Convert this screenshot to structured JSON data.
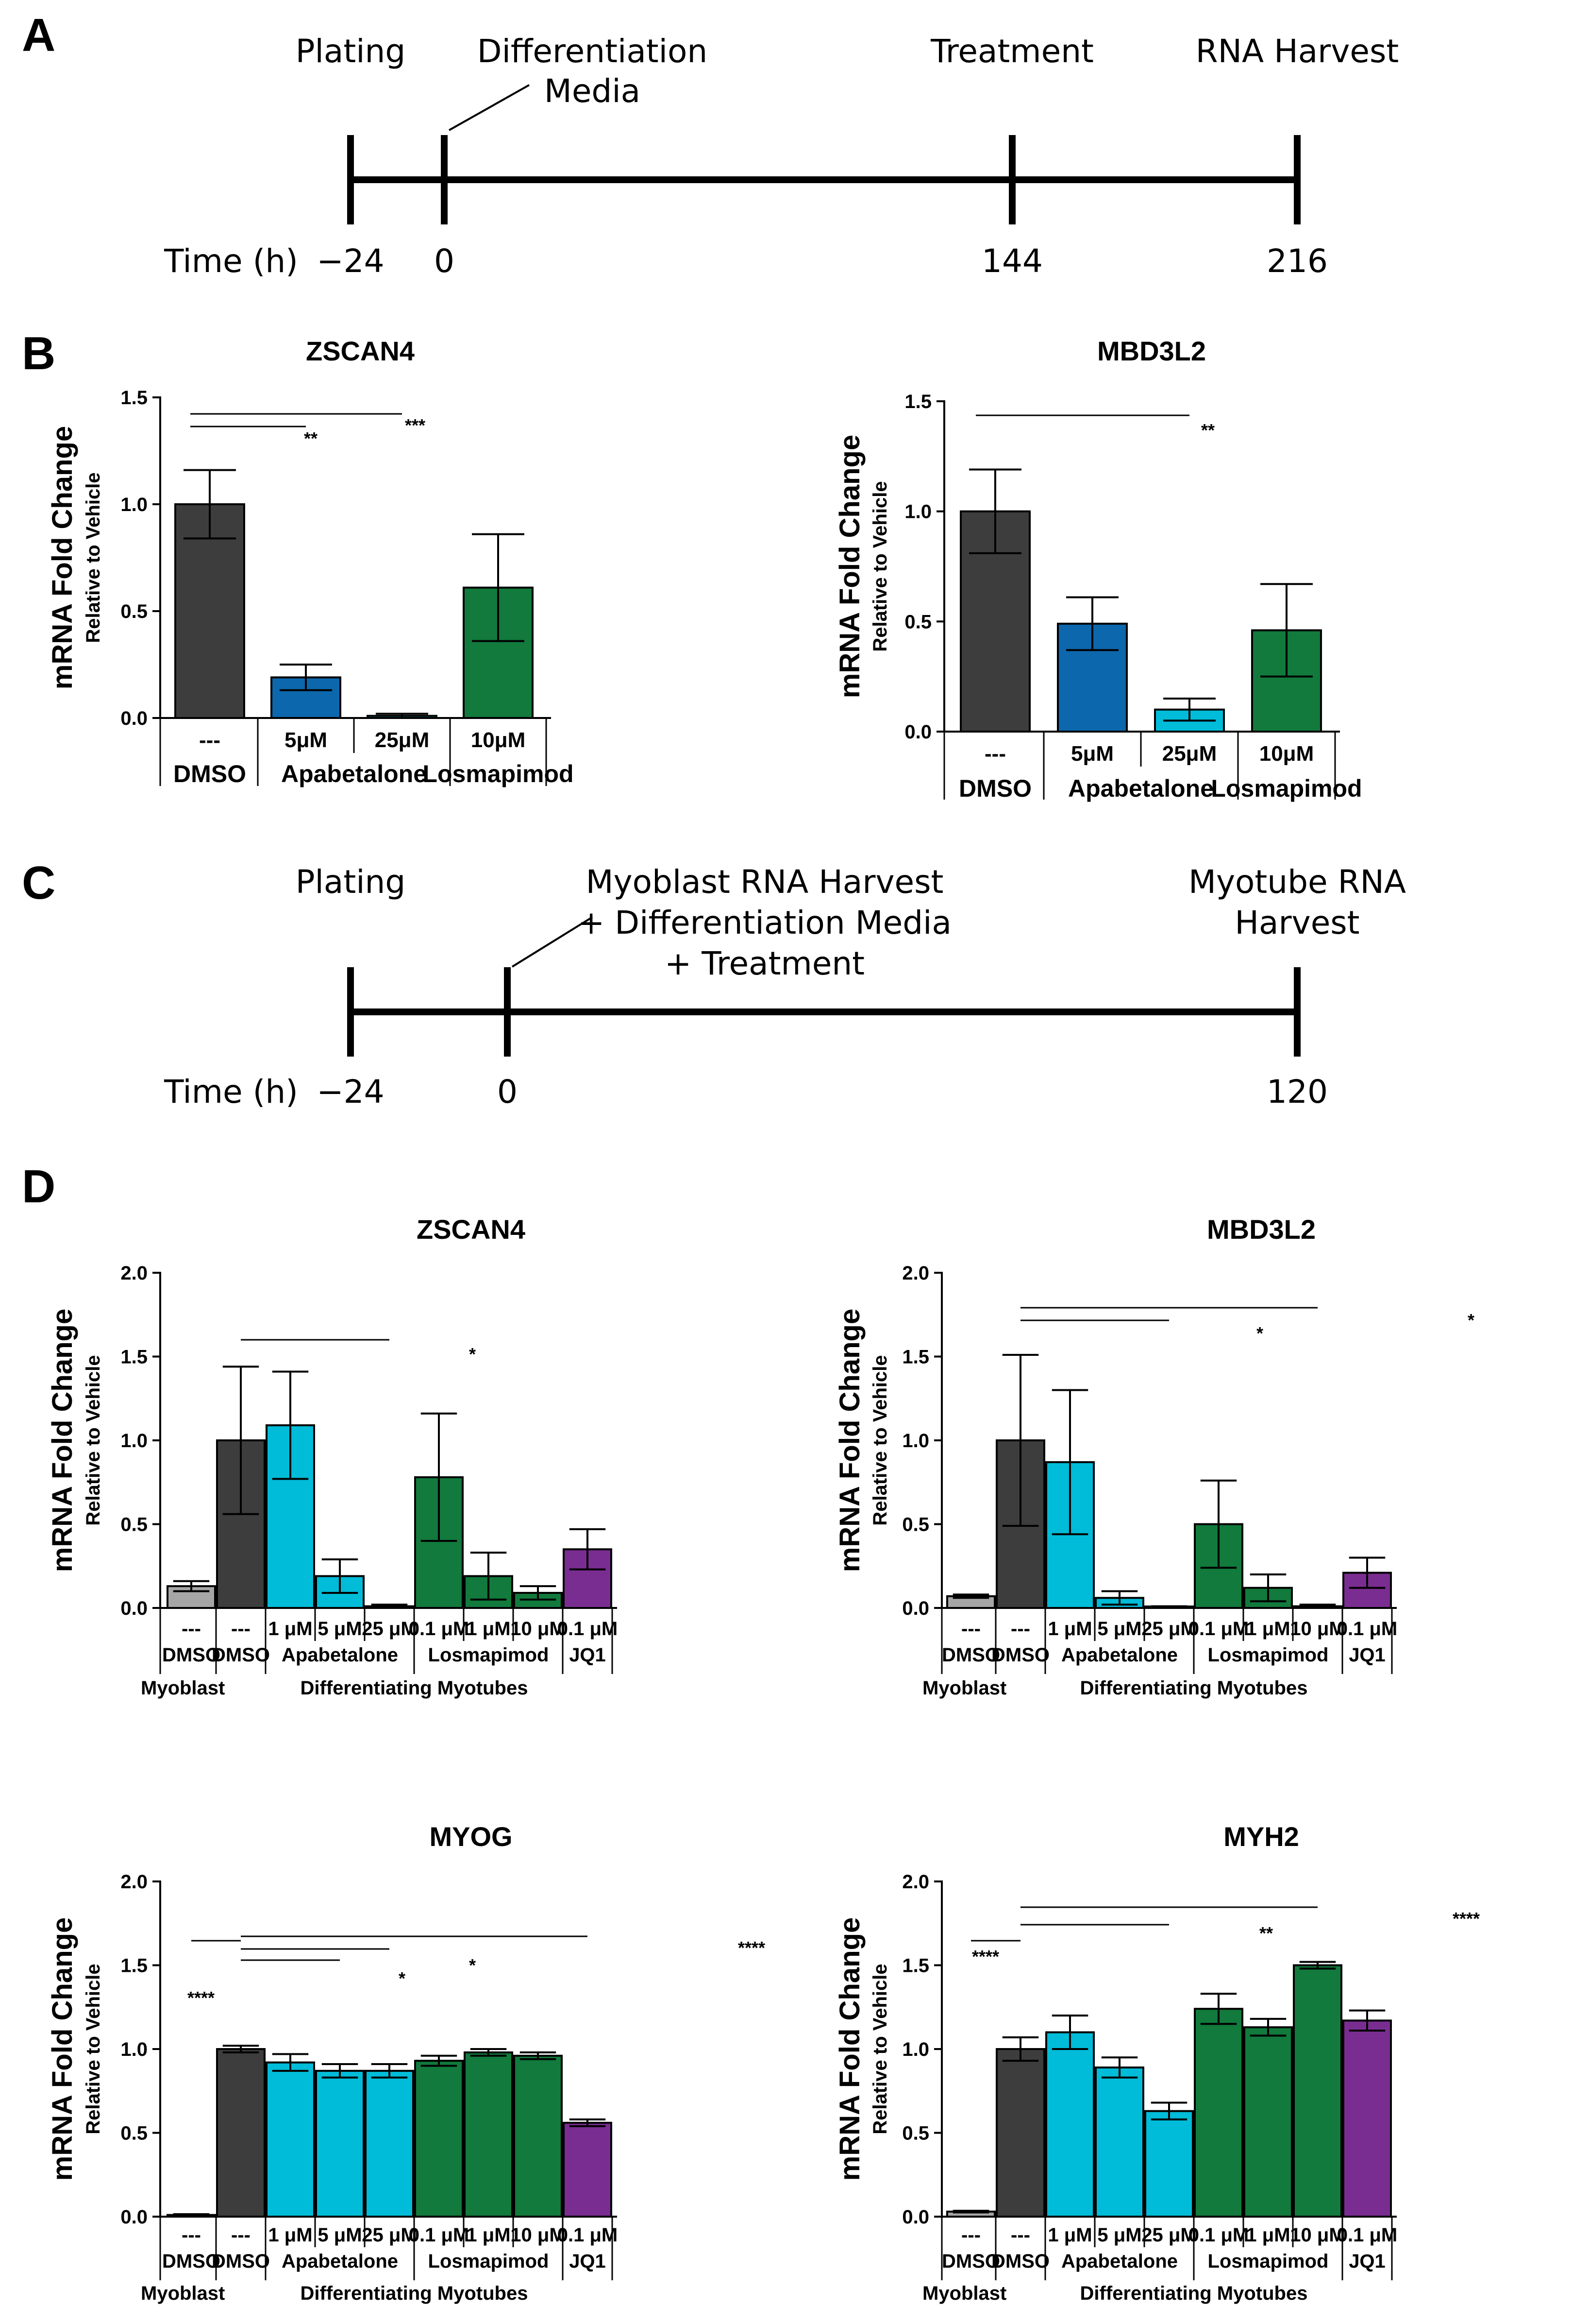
{
  "colors": {
    "dmso": "#3d3d3d",
    "myoblast": "#a6a6a6",
    "apabetalone_b5": "#0c67ac",
    "apabetalone": "#00bcd8",
    "losmapimod": "#117a3c",
    "jq1": "#7a2d91"
  },
  "panels": {
    "A": {
      "letter": "A",
      "events": [
        {
          "label": "Plating",
          "time": "−24"
        },
        {
          "label": "Differentiation\nMedia",
          "time": "0"
        },
        {
          "label": "Treatment",
          "time": "144"
        },
        {
          "label": "RNA Harvest",
          "time": "216"
        }
      ],
      "time_label": "Time (h)"
    },
    "C": {
      "letter": "C",
      "events": [
        {
          "label": "Plating",
          "time": "−24"
        },
        {
          "label": "Myoblast RNA Harvest\n+ Differentiation Media\n+ Treatment",
          "time": "0"
        },
        {
          "label": "Myotube RNA\nHarvest",
          "time": "120"
        }
      ],
      "time_label": "Time (h)"
    },
    "B": {
      "letter": "B"
    },
    "D": {
      "letter": "D"
    }
  },
  "chart_data": [
    {
      "panel": "B",
      "type": "bar",
      "title": "ZSCAN4",
      "ylabel": "mRNA Fold Change",
      "ylabel2": "Relative to Vehicle",
      "ylim": [
        0,
        1.5
      ],
      "yticks": [
        "0.0",
        "0.5",
        "1.0",
        "1.5"
      ],
      "categories": [
        "---",
        "5μM",
        "25μM",
        "10μM"
      ],
      "values": [
        1.0,
        0.19,
        0.01,
        0.61
      ],
      "errors": [
        0.16,
        0.06,
        0.01,
        0.25
      ],
      "colors": [
        "dmso",
        "apabetalone_b5",
        "apabetalone",
        "losmapimod"
      ],
      "groups": [
        {
          "label": "DMSO",
          "span": [
            0,
            0
          ]
        },
        {
          "label": "Apabetalone",
          "span": [
            1,
            2
          ]
        },
        {
          "label": "Losmapimod",
          "span": [
            3,
            3
          ]
        }
      ],
      "significance": [
        {
          "from": 0,
          "to": 1,
          "label": "**"
        },
        {
          "from": 0,
          "to": 2,
          "label": "***"
        }
      ]
    },
    {
      "panel": "B",
      "type": "bar",
      "title": "MBD3L2",
      "ylabel": "mRNA Fold Change",
      "ylabel2": "Relative to Vehicle",
      "ylim": [
        0,
        1.5
      ],
      "yticks": [
        "0.0",
        "0.5",
        "1.0",
        "1.5"
      ],
      "categories": [
        "---",
        "5μM",
        "25μM",
        "10μM"
      ],
      "values": [
        1.0,
        0.49,
        0.1,
        0.46
      ],
      "errors": [
        0.19,
        0.12,
        0.05,
        0.21
      ],
      "colors": [
        "dmso",
        "apabetalone_b5",
        "apabetalone",
        "losmapimod"
      ],
      "groups": [
        {
          "label": "DMSO",
          "span": [
            0,
            0
          ]
        },
        {
          "label": "Apabetalone",
          "span": [
            1,
            2
          ]
        },
        {
          "label": "Losmapimod",
          "span": [
            3,
            3
          ]
        }
      ],
      "significance": [
        {
          "from": 0,
          "to": 2,
          "label": "**"
        }
      ]
    },
    {
      "panel": "D",
      "type": "bar",
      "title": "ZSCAN4",
      "ylabel": "mRNA Fold Change",
      "ylabel2": "Relative to Vehicle",
      "ylim": [
        0,
        2.0
      ],
      "yticks": [
        "0.0",
        "0.5",
        "1.0",
        "1.5",
        "2.0"
      ],
      "categories": [
        "---",
        "---",
        "1 μM",
        "5 μM",
        "25 μM",
        "0.1 μM",
        "1 μM",
        "10 μM",
        "0.1 μM"
      ],
      "values": [
        0.13,
        1.0,
        1.09,
        0.19,
        0.01,
        0.78,
        0.19,
        0.09,
        0.35
      ],
      "errors": [
        0.03,
        0.44,
        0.32,
        0.1,
        0.01,
        0.38,
        0.14,
        0.04,
        0.12
      ],
      "colors": [
        "myoblast",
        "dmso",
        "apabetalone",
        "apabetalone",
        "apabetalone",
        "losmapimod",
        "losmapimod",
        "losmapimod",
        "jq1"
      ],
      "groups": [
        {
          "label": "DMSO",
          "span": [
            0,
            0
          ]
        },
        {
          "label": "DMSO",
          "span": [
            1,
            1
          ]
        },
        {
          "label": "Apabetalone",
          "span": [
            2,
            4
          ]
        },
        {
          "label": "Losmapimod",
          "span": [
            5,
            7
          ]
        },
        {
          "label": "JQ1",
          "span": [
            8,
            8
          ]
        }
      ],
      "super_groups": [
        {
          "label": "Myoblast",
          "span": [
            0,
            0
          ]
        },
        {
          "label": "Differentiating Myotubes",
          "span": [
            1,
            8
          ]
        }
      ],
      "significance": [
        {
          "from": 1,
          "to": 4,
          "label": "*"
        }
      ]
    },
    {
      "panel": "D",
      "type": "bar",
      "title": "MBD3L2",
      "ylabel": "mRNA Fold Change",
      "ylabel2": "Relative to Vehicle",
      "ylim": [
        0,
        2.0
      ],
      "yticks": [
        "0.0",
        "0.5",
        "1.0",
        "1.5",
        "2.0"
      ],
      "categories": [
        "---",
        "---",
        "1 μM",
        "5 μM",
        "25 μM",
        "0.1 μM",
        "1 μM",
        "10 μM",
        "0.1 μM"
      ],
      "values": [
        0.07,
        1.0,
        0.87,
        0.06,
        0.005,
        0.5,
        0.12,
        0.01,
        0.21
      ],
      "errors": [
        0.01,
        0.51,
        0.43,
        0.04,
        0.005,
        0.26,
        0.08,
        0.01,
        0.09
      ],
      "colors": [
        "myoblast",
        "dmso",
        "apabetalone",
        "apabetalone",
        "apabetalone",
        "losmapimod",
        "losmapimod",
        "losmapimod",
        "jq1"
      ],
      "groups": [
        {
          "label": "DMSO",
          "span": [
            0,
            0
          ]
        },
        {
          "label": "DMSO",
          "span": [
            1,
            1
          ]
        },
        {
          "label": "Apabetalone",
          "span": [
            2,
            4
          ]
        },
        {
          "label": "Losmapimod",
          "span": [
            5,
            7
          ]
        },
        {
          "label": "JQ1",
          "span": [
            8,
            8
          ]
        }
      ],
      "super_groups": [
        {
          "label": "Myoblast",
          "span": [
            0,
            0
          ]
        },
        {
          "label": "Differentiating Myotubes",
          "span": [
            1,
            8
          ]
        }
      ],
      "significance": [
        {
          "from": 1,
          "to": 4,
          "label": "*"
        },
        {
          "from": 1,
          "to": 7,
          "label": "*"
        }
      ]
    },
    {
      "panel": "D",
      "type": "bar",
      "title": "MYOG",
      "ylabel": "mRNA Fold Change",
      "ylabel2": "Relative to Vehicle",
      "ylim": [
        0,
        2.0
      ],
      "yticks": [
        "0.0",
        "0.5",
        "1.0",
        "1.5",
        "2.0"
      ],
      "categories": [
        "---",
        "---",
        "1 μM",
        "5 μM",
        "25 μM",
        "0.1 μM",
        "1 μM",
        "10 μM",
        "0.1 μM"
      ],
      "values": [
        0.01,
        1.0,
        0.92,
        0.87,
        0.87,
        0.93,
        0.98,
        0.96,
        0.56
      ],
      "errors": [
        0.005,
        0.02,
        0.05,
        0.04,
        0.04,
        0.03,
        0.02,
        0.02,
        0.02
      ],
      "colors": [
        "myoblast",
        "dmso",
        "apabetalone",
        "apabetalone",
        "apabetalone",
        "losmapimod",
        "losmapimod",
        "losmapimod",
        "jq1"
      ],
      "groups": [
        {
          "label": "DMSO",
          "span": [
            0,
            0
          ]
        },
        {
          "label": "DMSO",
          "span": [
            1,
            1
          ]
        },
        {
          "label": "Apabetalone",
          "span": [
            2,
            4
          ]
        },
        {
          "label": "Losmapimod",
          "span": [
            5,
            7
          ]
        },
        {
          "label": "JQ1",
          "span": [
            8,
            8
          ]
        }
      ],
      "super_groups": [
        {
          "label": "Myoblast",
          "span": [
            0,
            0
          ]
        },
        {
          "label": "Differentiating Myotubes",
          "span": [
            1,
            8
          ]
        }
      ],
      "significance": [
        {
          "from": 0,
          "to": 1,
          "label": "****"
        },
        {
          "from": 1,
          "to": 3,
          "label": "*"
        },
        {
          "from": 1,
          "to": 4,
          "label": "*"
        },
        {
          "from": 1,
          "to": 8,
          "label": "****"
        }
      ]
    },
    {
      "panel": "D",
      "type": "bar",
      "title": "MYH2",
      "ylabel": "mRNA Fold Change",
      "ylabel2": "Relative to Vehicle",
      "ylim": [
        0,
        2.0
      ],
      "yticks": [
        "0.0",
        "0.5",
        "1.0",
        "1.5",
        "2.0"
      ],
      "categories": [
        "---",
        "---",
        "1 μM",
        "5 μM",
        "25 μM",
        "0.1 μM",
        "1 μM",
        "10 μM",
        "0.1 μM"
      ],
      "values": [
        0.03,
        1.0,
        1.1,
        0.89,
        0.63,
        1.24,
        1.13,
        1.5,
        1.17
      ],
      "errors": [
        0.005,
        0.07,
        0.1,
        0.06,
        0.05,
        0.09,
        0.05,
        0.02,
        0.06
      ],
      "colors": [
        "myoblast",
        "dmso",
        "apabetalone",
        "apabetalone",
        "apabetalone",
        "losmapimod",
        "losmapimod",
        "losmapimod",
        "jq1"
      ],
      "groups": [
        {
          "label": "DMSO",
          "span": [
            0,
            0
          ]
        },
        {
          "label": "DMSO",
          "span": [
            1,
            1
          ]
        },
        {
          "label": "Apabetalone",
          "span": [
            2,
            4
          ]
        },
        {
          "label": "Losmapimod",
          "span": [
            5,
            7
          ]
        },
        {
          "label": "JQ1",
          "span": [
            8,
            8
          ]
        }
      ],
      "super_groups": [
        {
          "label": "Myoblast",
          "span": [
            0,
            0
          ]
        },
        {
          "label": "Differentiating Myotubes",
          "span": [
            1,
            8
          ]
        }
      ],
      "significance": [
        {
          "from": 0,
          "to": 1,
          "label": "****"
        },
        {
          "from": 1,
          "to": 4,
          "label": "**"
        },
        {
          "from": 1,
          "to": 7,
          "label": "****"
        }
      ]
    }
  ]
}
